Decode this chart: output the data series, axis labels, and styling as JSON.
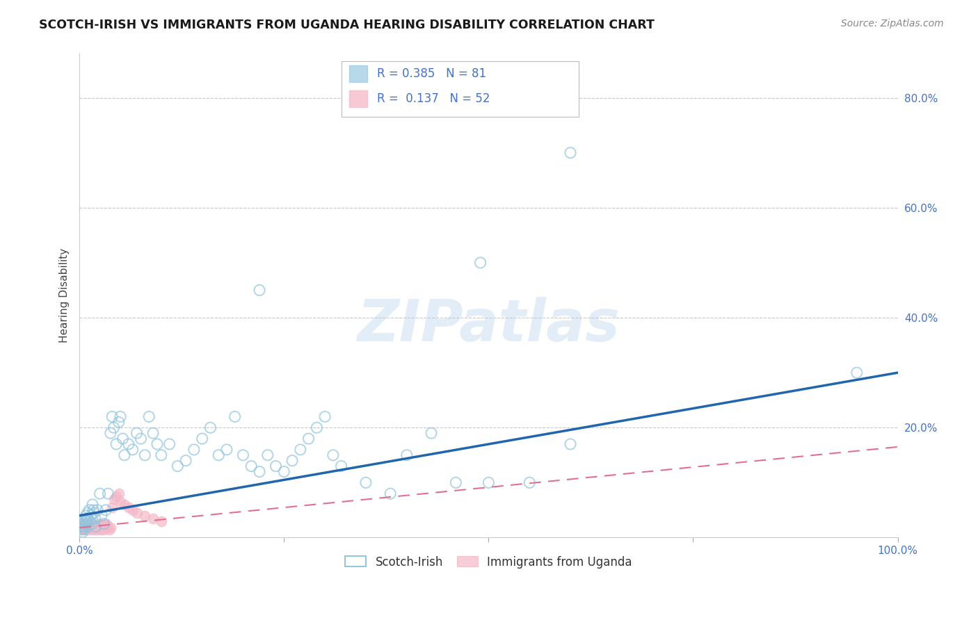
{
  "title": "SCOTCH-IRISH VS IMMIGRANTS FROM UGANDA HEARING DISABILITY CORRELATION CHART",
  "source": "Source: ZipAtlas.com",
  "ylabel": "Hearing Disability",
  "watermark": "ZIPatlas",
  "scotch_irish_R": 0.385,
  "scotch_irish_N": 81,
  "uganda_R": 0.137,
  "uganda_N": 52,
  "scotch_irish_color": "#92c5de",
  "uganda_color": "#f4b8c8",
  "trendline_scotch_color": "#2166ac",
  "trendline_uganda_color": "#e07090",
  "xlim": [
    0.0,
    1.0
  ],
  "ylim": [
    0.0,
    0.88
  ],
  "background_color": "#ffffff",
  "grid_color": "#c8c8c8",
  "tick_color": "#4472c4",
  "ytick_vals": [
    0.0,
    0.2,
    0.4,
    0.6,
    0.8
  ],
  "ytick_labels": [
    "",
    "20.0%",
    "40.0%",
    "60.0%",
    "80.0%"
  ],
  "xtick_vals": [
    0.0,
    0.25,
    0.5,
    0.75,
    1.0
  ],
  "xtick_labels": [
    "0.0%",
    "",
    "",
    "",
    "100.0%"
  ],
  "si_x": [
    0.001,
    0.002,
    0.003,
    0.004,
    0.005,
    0.005,
    0.006,
    0.007,
    0.007,
    0.008,
    0.009,
    0.009,
    0.01,
    0.01,
    0.011,
    0.012,
    0.013,
    0.014,
    0.015,
    0.016,
    0.017,
    0.018,
    0.019,
    0.02,
    0.022,
    0.025,
    0.027,
    0.03,
    0.032,
    0.035,
    0.038,
    0.04,
    0.042,
    0.045,
    0.048,
    0.05,
    0.053,
    0.055,
    0.06,
    0.065,
    0.07,
    0.075,
    0.08,
    0.085,
    0.09,
    0.095,
    0.1,
    0.11,
    0.12,
    0.13,
    0.14,
    0.15,
    0.16,
    0.17,
    0.18,
    0.19,
    0.2,
    0.21,
    0.22,
    0.23,
    0.24,
    0.25,
    0.26,
    0.27,
    0.28,
    0.29,
    0.3,
    0.31,
    0.32,
    0.35,
    0.38,
    0.4,
    0.43,
    0.46,
    0.5,
    0.55,
    0.6,
    0.95,
    0.49,
    0.6,
    0.22
  ],
  "si_y": [
    0.025,
    0.02,
    0.015,
    0.01,
    0.025,
    0.02,
    0.015,
    0.03,
    0.02,
    0.04,
    0.025,
    0.03,
    0.035,
    0.045,
    0.02,
    0.05,
    0.03,
    0.04,
    0.025,
    0.06,
    0.05,
    0.045,
    0.035,
    0.02,
    0.05,
    0.08,
    0.04,
    0.025,
    0.05,
    0.08,
    0.19,
    0.22,
    0.2,
    0.17,
    0.21,
    0.22,
    0.18,
    0.15,
    0.17,
    0.16,
    0.19,
    0.18,
    0.15,
    0.22,
    0.19,
    0.17,
    0.15,
    0.17,
    0.13,
    0.14,
    0.16,
    0.18,
    0.2,
    0.15,
    0.16,
    0.22,
    0.15,
    0.13,
    0.12,
    0.15,
    0.13,
    0.12,
    0.14,
    0.16,
    0.18,
    0.2,
    0.22,
    0.15,
    0.13,
    0.1,
    0.08,
    0.15,
    0.19,
    0.1,
    0.1,
    0.1,
    0.17,
    0.3,
    0.5,
    0.7,
    0.45
  ],
  "ug_x": [
    0.001,
    0.002,
    0.003,
    0.004,
    0.004,
    0.005,
    0.006,
    0.007,
    0.007,
    0.008,
    0.009,
    0.009,
    0.01,
    0.01,
    0.011,
    0.012,
    0.013,
    0.014,
    0.015,
    0.016,
    0.017,
    0.018,
    0.019,
    0.02,
    0.021,
    0.022,
    0.023,
    0.024,
    0.025,
    0.026,
    0.027,
    0.028,
    0.029,
    0.03,
    0.031,
    0.032,
    0.033,
    0.035,
    0.036,
    0.038,
    0.04,
    0.042,
    0.045,
    0.048,
    0.05,
    0.055,
    0.06,
    0.065,
    0.07,
    0.08,
    0.09,
    0.1
  ],
  "ug_y": [
    0.02,
    0.015,
    0.025,
    0.02,
    0.018,
    0.022,
    0.015,
    0.025,
    0.02,
    0.018,
    0.022,
    0.025,
    0.015,
    0.02,
    0.018,
    0.022,
    0.025,
    0.02,
    0.015,
    0.018,
    0.022,
    0.025,
    0.02,
    0.015,
    0.018,
    0.022,
    0.025,
    0.02,
    0.015,
    0.018,
    0.022,
    0.025,
    0.02,
    0.015,
    0.018,
    0.022,
    0.025,
    0.02,
    0.015,
    0.018,
    0.055,
    0.07,
    0.075,
    0.08,
    0.065,
    0.06,
    0.055,
    0.05,
    0.045,
    0.04,
    0.035,
    0.03
  ],
  "trendline_si_x0": 0.0,
  "trendline_si_y0": 0.04,
  "trendline_si_x1": 1.0,
  "trendline_si_y1": 0.3,
  "trendline_ug_x0": 0.0,
  "trendline_ug_y0": 0.018,
  "trendline_ug_x1": 1.0,
  "trendline_ug_y1": 0.165
}
